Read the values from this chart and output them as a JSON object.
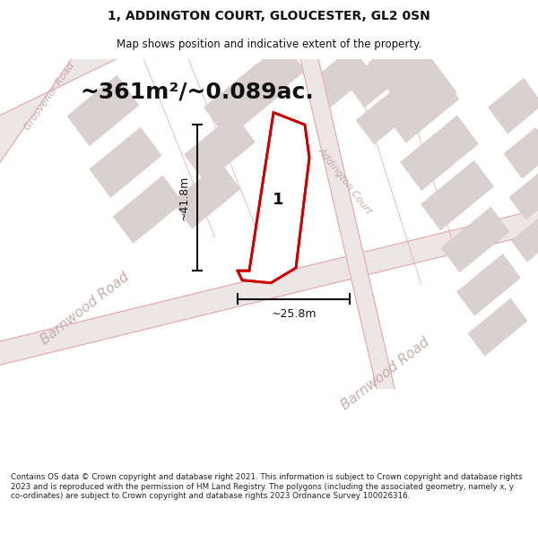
{
  "title": "1, ADDINGTON COURT, GLOUCESTER, GL2 0SN",
  "subtitle": "Map shows position and indicative extent of the property.",
  "area_label": "~361m²/~0.089ac.",
  "width_label": "~25.8m",
  "height_label": "~41.8m",
  "plot_number": "1",
  "road_label_barnwood": "Barnwood Road",
  "road_label_barnwood2": "Barnwood Road",
  "road_label_grosvenor": "Grosvenor Road",
  "road_label_addington": "Addington Court",
  "footer": "Contains OS data © Crown copyright and database right 2021. This information is subject to Crown copyright and database rights 2023 and is reproduced with the permission of HM Land Registry. The polygons (including the associated geometry, namely x, y co-ordinates) are subject to Crown copyright and database rights 2023 Ordnance Survey 100026316.",
  "bg_color": "#ffffff",
  "map_bg": "#f7f2f2",
  "block_color": "#d9d0d0",
  "road_fill": "#ede6e6",
  "road_line": "#e8a8a8",
  "property_line": "#cc0000",
  "property_fill": "#ffffff",
  "dim_line_color": "#111111",
  "road_text_color": "#c8aaaa",
  "title_fontsize": 10,
  "subtitle_fontsize": 8.5,
  "area_fontsize": 18,
  "dim_fontsize": 9,
  "road_fontsize_main": 11,
  "road_fontsize_small": 8
}
